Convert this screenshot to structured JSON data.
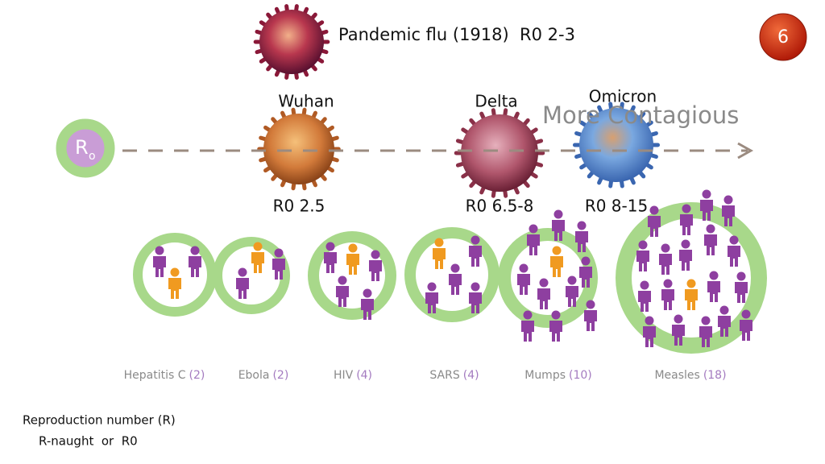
{
  "badge": "6",
  "flu_label": "Pandemic flu (1918)  R0 2-3",
  "r0_symbol": {
    "main": "R",
    "sub": "o"
  },
  "arrow_label": "More Contagious",
  "variants": [
    {
      "name": "Wuhan",
      "r0": "R0 2.5"
    },
    {
      "name": "Delta",
      "r0": "R0 6.5-8"
    },
    {
      "name": "Omicron",
      "r0": "R0 8-15"
    }
  ],
  "diseases": [
    {
      "name": "Hepatitis C",
      "count": "(2)"
    },
    {
      "name": "Ebola",
      "count": "(2)"
    },
    {
      "name": "HIV",
      "count": "(4)"
    },
    {
      "name": "SARS",
      "count": "(4)"
    },
    {
      "name": "Mumps",
      "count": "(10)"
    },
    {
      "name": "Measles",
      "count": "(18)"
    }
  ],
  "footer": {
    "line1": "Reproduction number (R)",
    "line2": "R-naught  or  R0"
  }
}
